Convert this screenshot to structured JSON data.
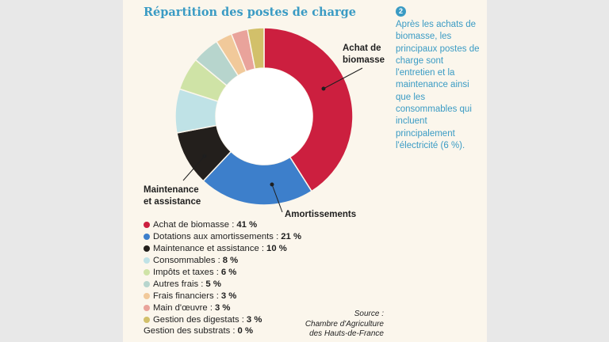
{
  "title": "Répartition des postes de charge",
  "note": {
    "number": "2",
    "text": "Après les achats de biomasse, les principaux postes de charge sont l'entretien et la maintenance ainsi que les consommables qui incluent principalement l'électricité (6 %)."
  },
  "callouts": {
    "achat": [
      "Achat de",
      "biomasse"
    ],
    "amortissements": "Amortissements",
    "maintenance": [
      "Maintenance",
      "et assistance"
    ]
  },
  "source": [
    "Source :",
    "Chambre d'Agriculture",
    "des Hauts-de-France"
  ],
  "chart_data": {
    "type": "pie",
    "title": "Répartition des postes de charge",
    "unit": "%",
    "slices": [
      {
        "label": "Achat de biomasse",
        "value": 41,
        "display": "41 %",
        "color": "#cc1f3f"
      },
      {
        "label": "Dotations aux amortissements",
        "value": 21,
        "display": "21 %",
        "color": "#3d7fcb"
      },
      {
        "label": "Maintenance et assistance",
        "value": 10,
        "display": "10 %",
        "color": "#231f1c"
      },
      {
        "label": "Consommables",
        "value": 8,
        "display": "8 %",
        "color": "#bfe2e6"
      },
      {
        "label": "Impôts et taxes",
        "value": 6,
        "display": "6 %",
        "color": "#cfe3a6"
      },
      {
        "label": "Autres frais",
        "value": 5,
        "display": "5 %",
        "color": "#b7d5cd"
      },
      {
        "label": "Frais financiers",
        "value": 3,
        "display": "3 %",
        "color": "#f1c99a"
      },
      {
        "label": "Main d'œuvre",
        "value": 3,
        "display": "3 %",
        "color": "#e9a39b"
      },
      {
        "label": "Gestion des digestats",
        "value": 3,
        "display": "3 %",
        "color": "#d2c06a"
      },
      {
        "label": "Gestion des substrats",
        "value": 0,
        "display": "0 %",
        "color": "#9a9a9a"
      }
    ]
  }
}
